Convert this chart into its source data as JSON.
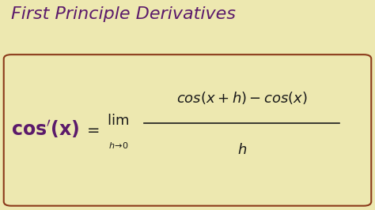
{
  "title": "First Principle Derivatives",
  "title_color": "#5B1A6B",
  "title_fontsize": 16,
  "background_color": "#EDE8B0",
  "box_edge_color": "#8B3A1A",
  "lhs_color": "#5B1A6B",
  "formula_color": "#1a1a1a",
  "fig_width": 4.74,
  "fig_height": 2.66,
  "dpi": 100
}
